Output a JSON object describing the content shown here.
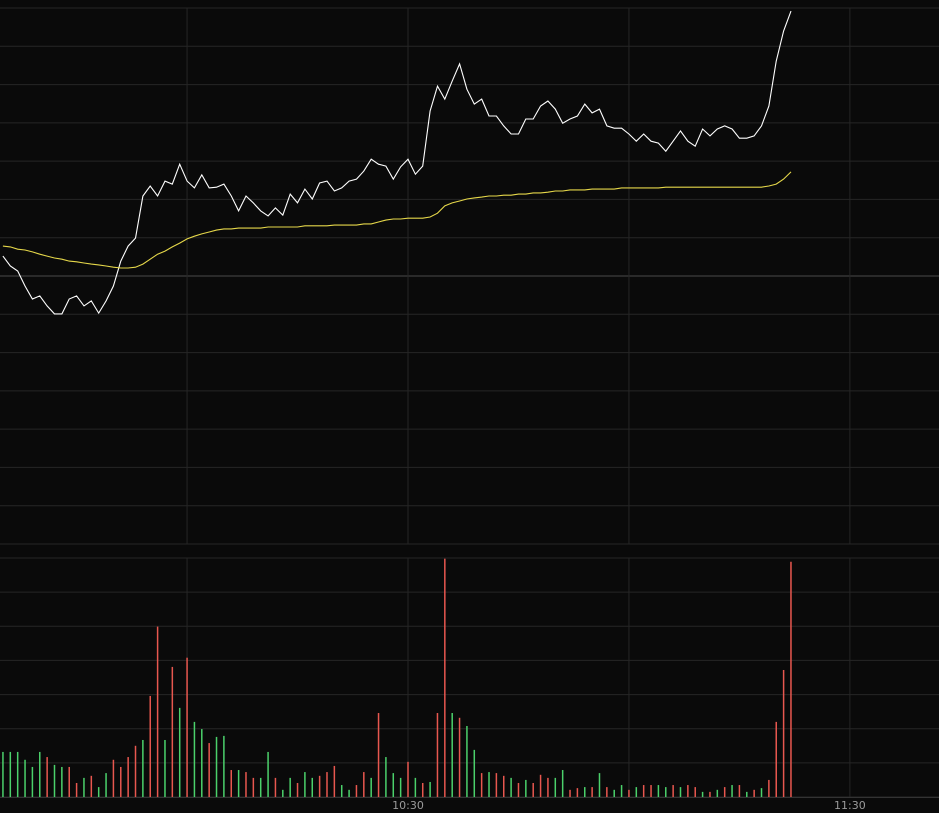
{
  "chart_data": [
    {
      "type": "line",
      "x": [
        5,
        6,
        7,
        8,
        9,
        10,
        11,
        12,
        13,
        14,
        15,
        16,
        17,
        18,
        19,
        20,
        21,
        22,
        23,
        24,
        25,
        26,
        27,
        28,
        29,
        30,
        31,
        32,
        33,
        34,
        35,
        36,
        37,
        38,
        39,
        40,
        41,
        42,
        43,
        44,
        45,
        46,
        47,
        48,
        49,
        50,
        51,
        52,
        53,
        54,
        55,
        56,
        57,
        58,
        59,
        60,
        61,
        62,
        63,
        64,
        65,
        66,
        67,
        68,
        69,
        70,
        71,
        72,
        73,
        74,
        75,
        76,
        77,
        78,
        79,
        80,
        81,
        82,
        83,
        84,
        85,
        86,
        87,
        88,
        89,
        90,
        91,
        92,
        93,
        94,
        95,
        96,
        97,
        98,
        99,
        100,
        101,
        102,
        103,
        104,
        105,
        106,
        107,
        108,
        109,
        110,
        111,
        112
      ],
      "series": [
        {
          "color": "#ffffff",
          "values": [
            0.52,
            0.26,
            0.13,
            -0.26,
            -0.6,
            -0.52,
            -0.78,
            -0.99,
            -0.99,
            -0.6,
            -0.52,
            -0.78,
            -0.65,
            -0.97,
            -0.65,
            -0.26,
            0.39,
            0.78,
            0.99,
            2.09,
            2.35,
            2.09,
            2.48,
            2.4,
            2.92,
            2.48,
            2.3,
            2.64,
            2.3,
            2.32,
            2.4,
            2.09,
            1.7,
            2.09,
            1.91,
            1.7,
            1.57,
            1.78,
            1.59,
            2.14,
            1.91,
            2.27,
            2.01,
            2.43,
            2.48,
            2.22,
            2.3,
            2.48,
            2.53,
            2.74,
            3.05,
            2.92,
            2.87,
            2.53,
            2.85,
            3.05,
            2.66,
            2.87,
            4.31,
            4.96,
            4.62,
            5.09,
            5.54,
            4.88,
            4.49,
            4.62,
            4.18,
            4.18,
            3.92,
            3.71,
            3.71,
            4.1,
            4.1,
            4.44,
            4.57,
            4.36,
            3.99,
            4.1,
            4.18,
            4.49,
            4.26,
            4.36,
            3.92,
            3.86,
            3.86,
            3.71,
            3.52,
            3.71,
            3.52,
            3.47,
            3.26,
            3.52,
            3.79,
            3.52,
            3.39,
            3.84,
            3.66,
            3.84,
            3.92,
            3.84,
            3.6,
            3.6,
            3.66,
            3.92,
            4.44,
            5.61,
            6.4,
            6.92
          ]
        },
        {
          "color": "#e6d84a",
          "values": [
            0.78,
            0.76,
            0.7,
            0.68,
            0.63,
            0.57,
            0.52,
            0.47,
            0.44,
            0.39,
            0.37,
            0.34,
            0.31,
            0.29,
            0.26,
            0.23,
            0.21,
            0.21,
            0.23,
            0.31,
            0.44,
            0.57,
            0.65,
            0.76,
            0.86,
            0.97,
            1.04,
            1.1,
            1.15,
            1.2,
            1.23,
            1.23,
            1.25,
            1.25,
            1.25,
            1.25,
            1.28,
            1.28,
            1.28,
            1.28,
            1.28,
            1.31,
            1.31,
            1.31,
            1.31,
            1.33,
            1.33,
            1.33,
            1.33,
            1.36,
            1.36,
            1.41,
            1.46,
            1.49,
            1.49,
            1.51,
            1.51,
            1.51,
            1.54,
            1.64,
            1.83,
            1.91,
            1.96,
            2.01,
            2.04,
            2.06,
            2.09,
            2.09,
            2.11,
            2.11,
            2.14,
            2.14,
            2.17,
            2.17,
            2.19,
            2.22,
            2.22,
            2.25,
            2.25,
            2.25,
            2.27,
            2.27,
            2.27,
            2.27,
            2.3,
            2.3,
            2.3,
            2.3,
            2.3,
            2.3,
            2.32,
            2.32,
            2.32,
            2.32,
            2.32,
            2.32,
            2.32,
            2.32,
            2.32,
            2.32,
            2.32,
            2.32,
            2.32,
            2.32,
            2.35,
            2.4,
            2.53,
            2.72
          ]
        }
      ],
      "xlim": [
        4.6,
        132.1
      ],
      "xgrid": [
        30,
        60,
        90,
        120
      ],
      "ylim": [
        -7,
        7
      ],
      "yticks": [
        -7,
        -6,
        -5,
        -4,
        -3,
        -2,
        -1,
        0,
        1,
        2,
        3,
        4,
        5,
        6,
        7
      ],
      "baseline": 0,
      "grid": true
    },
    {
      "type": "bar",
      "x": [
        5,
        6,
        7,
        8,
        9,
        10,
        11,
        12,
        13,
        14,
        15,
        16,
        17,
        18,
        19,
        20,
        21,
        22,
        23,
        24,
        25,
        26,
        27,
        28,
        29,
        30,
        31,
        32,
        33,
        34,
        35,
        36,
        37,
        38,
        39,
        40,
        41,
        42,
        43,
        44,
        45,
        46,
        47,
        48,
        49,
        50,
        51,
        52,
        53,
        54,
        55,
        56,
        57,
        58,
        59,
        60,
        61,
        62,
        63,
        64,
        65,
        66,
        67,
        68,
        69,
        70,
        71,
        72,
        73,
        74,
        75,
        76,
        77,
        78,
        79,
        80,
        81,
        82,
        83,
        84,
        85,
        86,
        87,
        88,
        89,
        90,
        91,
        92,
        93,
        94,
        95,
        96,
        97,
        98,
        99,
        100,
        101,
        102,
        103,
        104,
        105,
        106,
        107,
        108,
        109,
        110,
        111,
        112
      ],
      "values": [
        1.32,
        1.32,
        1.32,
        1.09,
        0.88,
        1.32,
        1.17,
        0.94,
        0.88,
        0.88,
        0.41,
        0.56,
        0.62,
        0.29,
        0.7,
        1.09,
        0.88,
        1.17,
        1.5,
        1.67,
        2.96,
        4.99,
        1.67,
        3.81,
        2.61,
        4.08,
        2.2,
        1.99,
        1.58,
        1.76,
        1.79,
        0.79,
        0.79,
        0.73,
        0.56,
        0.56,
        1.32,
        0.56,
        0.21,
        0.56,
        0.41,
        0.73,
        0.56,
        0.62,
        0.73,
        0.91,
        0.35,
        0.21,
        0.35,
        0.73,
        0.56,
        2.46,
        1.17,
        0.7,
        0.56,
        1.03,
        0.56,
        0.41,
        0.44,
        2.46,
        6.98,
        2.46,
        2.32,
        2.08,
        1.38,
        0.7,
        0.73,
        0.7,
        0.62,
        0.56,
        0.41,
        0.5,
        0.41,
        0.65,
        0.56,
        0.56,
        0.79,
        0.21,
        0.26,
        0.29,
        0.29,
        0.7,
        0.29,
        0.21,
        0.35,
        0.21,
        0.29,
        0.35,
        0.35,
        0.35,
        0.29,
        0.35,
        0.29,
        0.35,
        0.29,
        0.15,
        0.15,
        0.21,
        0.29,
        0.35,
        0.35,
        0.15,
        0.21,
        0.26,
        0.5,
        2.2,
        3.72,
        6.89
      ],
      "bar_colors": [
        "#4bd16b",
        "#4bd16b",
        "#4bd16b",
        "#4bd16b",
        "#4bd16b",
        "#4bd16b",
        "#e8574f",
        "#4bd16b",
        "#4bd16b",
        "#e8574f",
        "#e8574f",
        "#4bd16b",
        "#e8574f",
        "#4bd16b",
        "#4bd16b",
        "#e8574f",
        "#e8574f",
        "#e8574f",
        "#e8574f",
        "#4bd16b",
        "#e8574f",
        "#e8574f",
        "#4bd16b",
        "#e8574f",
        "#4bd16b",
        "#e8574f",
        "#4bd16b",
        "#4bd16b",
        "#e8574f",
        "#4bd16b",
        "#4bd16b",
        "#e8574f",
        "#4bd16b",
        "#e8574f",
        "#e8574f",
        "#4bd16b",
        "#4bd16b",
        "#e8574f",
        "#4bd16b",
        "#4bd16b",
        "#e8574f",
        "#4bd16b",
        "#4bd16b",
        "#e8574f",
        "#e8574f",
        "#e8574f",
        "#4bd16b",
        "#4bd16b",
        "#e8574f",
        "#e8574f",
        "#4bd16b",
        "#e8574f",
        "#4bd16b",
        "#4bd16b",
        "#4bd16b",
        "#e8574f",
        "#4bd16b",
        "#e8574f",
        "#4bd16b",
        "#e8574f",
        "#e8574f",
        "#4bd16b",
        "#e8574f",
        "#4bd16b",
        "#4bd16b",
        "#e8574f",
        "#4bd16b",
        "#e8574f",
        "#e8574f",
        "#4bd16b",
        "#e8574f",
        "#4bd16b",
        "#e8574f",
        "#e8574f",
        "#e8574f",
        "#4bd16b",
        "#4bd16b",
        "#e8574f",
        "#e8574f",
        "#4bd16b",
        "#e8574f",
        "#4bd16b",
        "#e8574f",
        "#4bd16b",
        "#4bd16b",
        "#e8574f",
        "#4bd16b",
        "#e8574f",
        "#e8574f",
        "#4bd16b",
        "#4bd16b",
        "#e8574f",
        "#4bd16b",
        "#e8574f",
        "#e8574f",
        "#4bd16b",
        "#e8574f",
        "#4bd16b",
        "#e8574f",
        "#4bd16b",
        "#e8574f",
        "#4bd16b",
        "#e8574f",
        "#4bd16b",
        "#e8574f",
        "#e8574f",
        "#e8574f",
        "#e8574f"
      ],
      "xlim": [
        4.6,
        132.1
      ],
      "xgrid": [
        30,
        60,
        90,
        120
      ],
      "xticks": [
        {
          "value": 60,
          "label": "10:30"
        },
        {
          "value": 120,
          "label": "11:30"
        }
      ],
      "ylim": [
        0,
        7
      ],
      "yticks": [
        0,
        1,
        2,
        3,
        4,
        5,
        6,
        7
      ],
      "grid": true
    }
  ]
}
